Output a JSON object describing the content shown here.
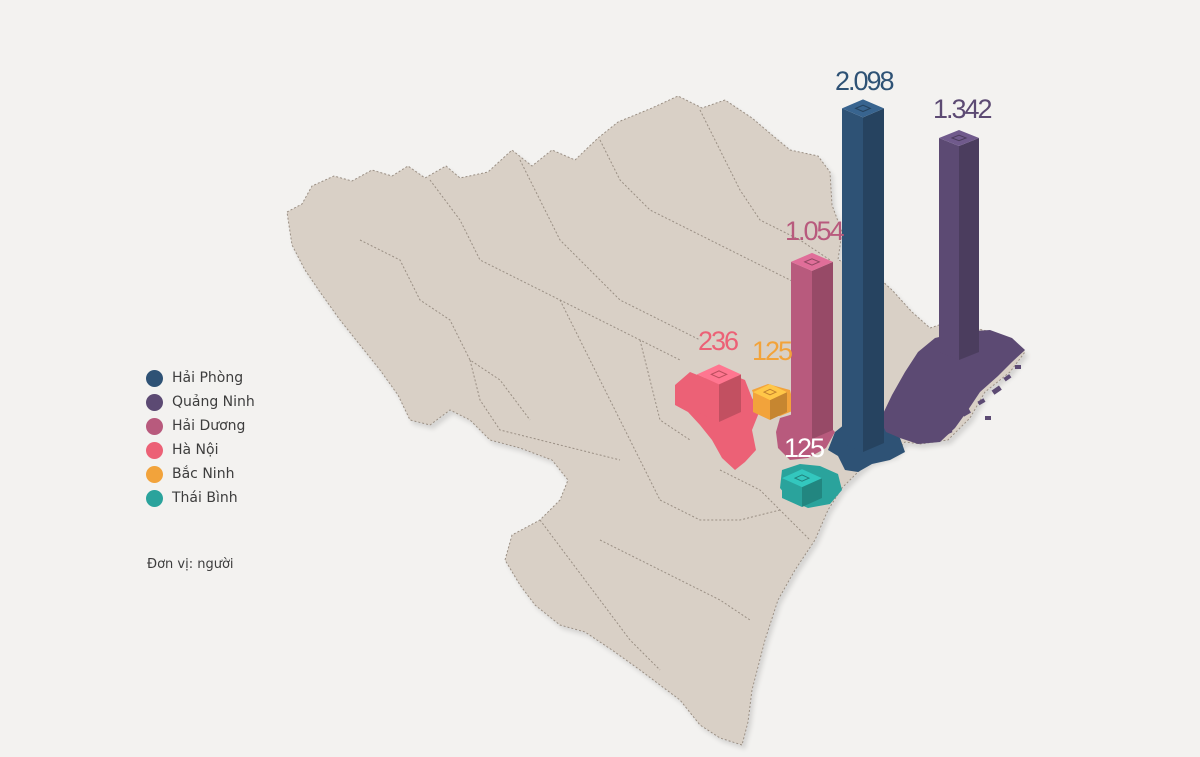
{
  "legend": [
    {
      "name": "Hải Phòng",
      "color": "#2e5275"
    },
    {
      "name": "Quảng Ninh",
      "color": "#5c4a73"
    },
    {
      "name": "Hải Dương",
      "color": "#b85a7d"
    },
    {
      "name": "Hà Nội",
      "color": "#ec6176"
    },
    {
      "name": "Bắc Ninh",
      "color": "#f2a33b"
    },
    {
      "name": "Thái Bình",
      "color": "#2aa39c"
    }
  ],
  "unit_note": "Đơn vị: người",
  "values": {
    "hai_phong": "2.098",
    "quang_ninh": "1.342",
    "hai_duong": "1.054",
    "ha_noi": "236",
    "bac_ninh": "125",
    "thai_binh": "125"
  },
  "map_colors": {
    "land": "#d9d0c6",
    "border": "#9a8f84",
    "background": "#f3f2f0"
  }
}
